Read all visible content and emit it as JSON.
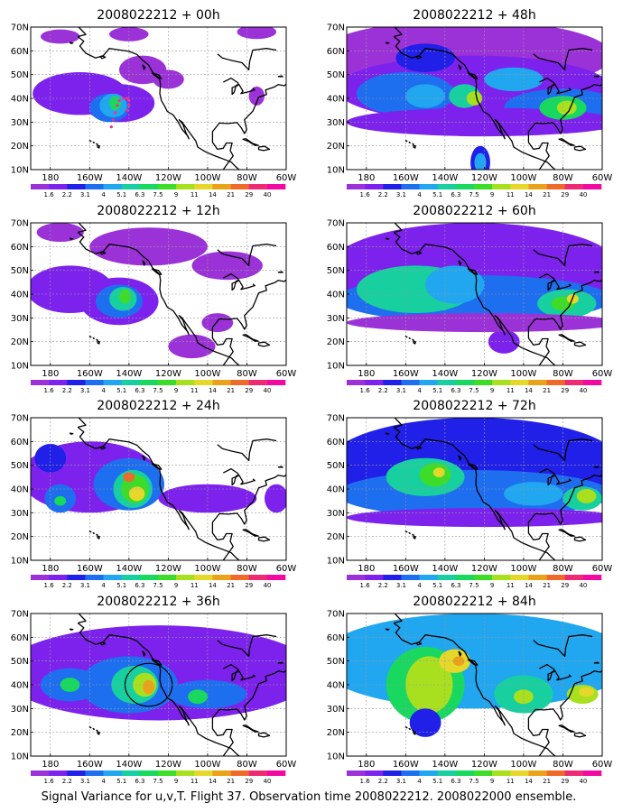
{
  "caption": "Signal Variance for u,v,T. Flight 37. Observation time 2008022212. 2008022000 ensemble.",
  "colorbar": {
    "labels": [
      "1.6",
      "2.2",
      "3.1",
      "4",
      "5.1",
      "6.3",
      "7.5",
      "9",
      "11",
      "14",
      "21",
      "29",
      "40"
    ],
    "colors": [
      "#9b32d8",
      "#7d22ec",
      "#2020e8",
      "#1e6ef0",
      "#21a6f0",
      "#18cfa0",
      "#18d860",
      "#3cdc28",
      "#a8e020",
      "#e6d82a",
      "#eaa21a",
      "#ee6a28",
      "#ee2a72",
      "#f20aa0"
    ]
  },
  "map_axes": {
    "x_labels": [
      "180",
      "160W",
      "140W",
      "120W",
      "100W",
      "80W",
      "60W"
    ],
    "y_labels": [
      "10N",
      "20N",
      "30N",
      "40N",
      "50N",
      "60N",
      "70N"
    ],
    "lon_range": [
      -190,
      -60
    ],
    "lat_range": [
      10,
      70
    ],
    "grid": true
  },
  "chart_data": [
    {
      "type": "heatmap",
      "title": "2008022212 + 00h",
      "intensity": 0
    },
    {
      "type": "heatmap",
      "title": "2008022212 + 48h",
      "intensity": 4
    },
    {
      "type": "heatmap",
      "title": "2008022212 + 12h",
      "intensity": 1
    },
    {
      "type": "heatmap",
      "title": "2008022212 + 60h",
      "intensity": 5
    },
    {
      "type": "heatmap",
      "title": "2008022212 + 24h",
      "intensity": 2
    },
    {
      "type": "heatmap",
      "title": "2008022212 + 72h",
      "intensity": 6
    },
    {
      "type": "heatmap",
      "title": "2008022212 + 36h",
      "intensity": 3
    },
    {
      "type": "heatmap",
      "title": "2008022212 + 84h",
      "intensity": 7
    }
  ]
}
